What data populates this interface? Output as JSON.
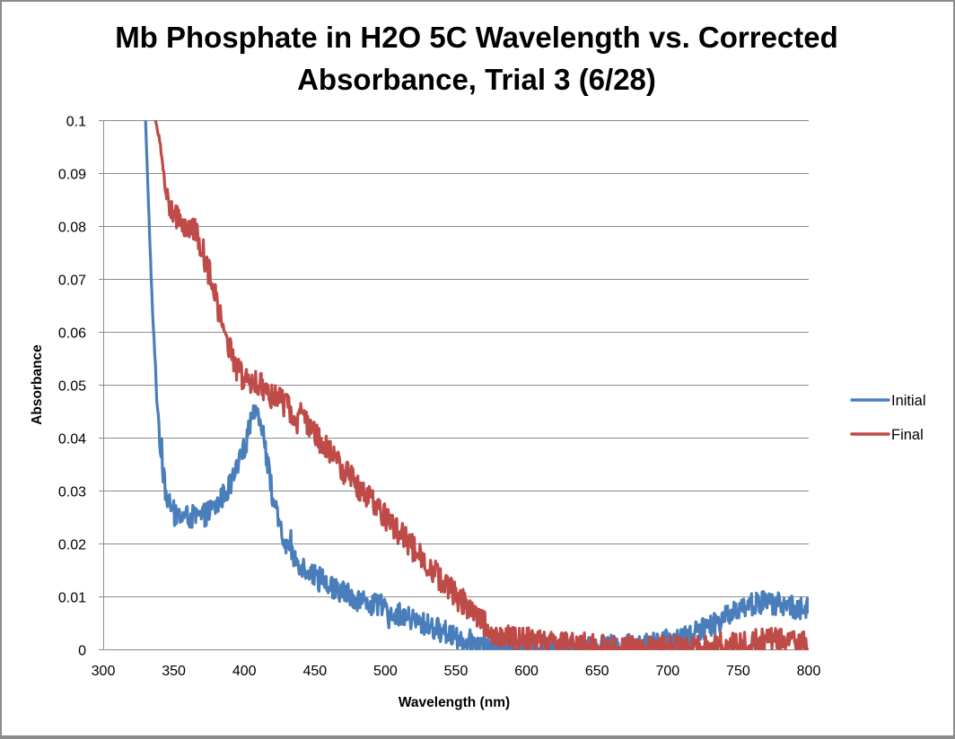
{
  "chart_data": {
    "type": "line",
    "title": [
      "Mb Phosphate in H2O 5C Wavelength vs. Corrected",
      "Absorbance, Trial 3 (6/28)"
    ],
    "xlabel": "Wavelength (nm)",
    "ylabel": "Absorbance",
    "xlim": [
      300,
      800
    ],
    "ylim": [
      0,
      0.1
    ],
    "x_ticks": [
      300,
      350,
      400,
      450,
      500,
      550,
      600,
      650,
      700,
      750,
      800
    ],
    "x_tick_labels": [
      "300",
      "350",
      "400",
      "450",
      "500",
      "550",
      "600",
      "650",
      "700",
      "750",
      "800"
    ],
    "y_ticks": [
      0,
      0.01,
      0.02,
      0.03,
      0.04,
      0.05,
      0.06,
      0.07,
      0.08,
      0.09,
      0.1
    ],
    "y_tick_labels": [
      "0",
      "0.01",
      "0.02",
      "0.03",
      "0.04",
      "0.05",
      "0.06",
      "0.07",
      "0.08",
      "0.09",
      "0.1"
    ],
    "grid": "horizontal",
    "legend_position": "right",
    "series": [
      {
        "name": "Initial",
        "color": "#4a7ebb",
        "noise": 0.0022,
        "x": [
          330,
          332,
          334,
          336,
          338,
          340,
          342,
          344,
          346,
          348,
          350,
          355,
          360,
          365,
          370,
          375,
          380,
          385,
          390,
          395,
          400,
          405,
          408,
          410,
          413,
          416,
          420,
          425,
          430,
          440,
          450,
          460,
          470,
          480,
          490,
          500,
          510,
          520,
          530,
          540,
          550,
          560,
          570,
          580,
          600,
          620,
          640,
          660,
          680,
          700,
          710,
          720,
          730,
          740,
          750,
          760,
          770,
          780,
          790,
          800
        ],
        "y": [
          0.1,
          0.085,
          0.07,
          0.058,
          0.048,
          0.04,
          0.034,
          0.03,
          0.028,
          0.027,
          0.026,
          0.025,
          0.025,
          0.025,
          0.025,
          0.026,
          0.027,
          0.029,
          0.031,
          0.034,
          0.038,
          0.043,
          0.045,
          0.045,
          0.042,
          0.036,
          0.029,
          0.023,
          0.019,
          0.016,
          0.014,
          0.012,
          0.011,
          0.0095,
          0.0085,
          0.0075,
          0.0065,
          0.0055,
          0.0045,
          0.0035,
          0.0025,
          0.0015,
          0.0008,
          0.0005,
          0.0005,
          0.0005,
          0.0005,
          0.0005,
          0.0008,
          0.0015,
          0.002,
          0.003,
          0.0045,
          0.006,
          0.008,
          0.0085,
          0.009,
          0.0085,
          0.008,
          0.0075
        ]
      },
      {
        "name": "Final",
        "color": "#be4b48",
        "noise": 0.0026,
        "x": [
          337,
          340,
          342,
          344,
          346,
          348,
          350,
          355,
          360,
          365,
          370,
          375,
          380,
          385,
          390,
          395,
          400,
          405,
          410,
          415,
          420,
          430,
          440,
          450,
          460,
          470,
          480,
          490,
          500,
          510,
          520,
          530,
          540,
          550,
          560,
          570,
          575,
          580,
          590,
          600,
          620,
          640,
          660,
          680,
          700,
          720,
          730,
          740,
          750,
          760,
          770,
          780,
          790,
          800
        ],
        "y": [
          0.1,
          0.096,
          0.092,
          0.088,
          0.085,
          0.083,
          0.082,
          0.081,
          0.08,
          0.079,
          0.076,
          0.071,
          0.066,
          0.061,
          0.057,
          0.053,
          0.051,
          0.05,
          0.05,
          0.049,
          0.048,
          0.046,
          0.044,
          0.041,
          0.037,
          0.034,
          0.031,
          0.028,
          0.025,
          0.022,
          0.019,
          0.016,
          0.013,
          0.01,
          0.008,
          0.005,
          0.003,
          0.002,
          0.0018,
          0.0015,
          0.0012,
          0.0008,
          0.0,
          0.0,
          0.0,
          0.0,
          0.0,
          0.0008,
          0.001,
          0.0015,
          0.002,
          0.0015,
          0.001,
          0.0015
        ]
      }
    ]
  }
}
